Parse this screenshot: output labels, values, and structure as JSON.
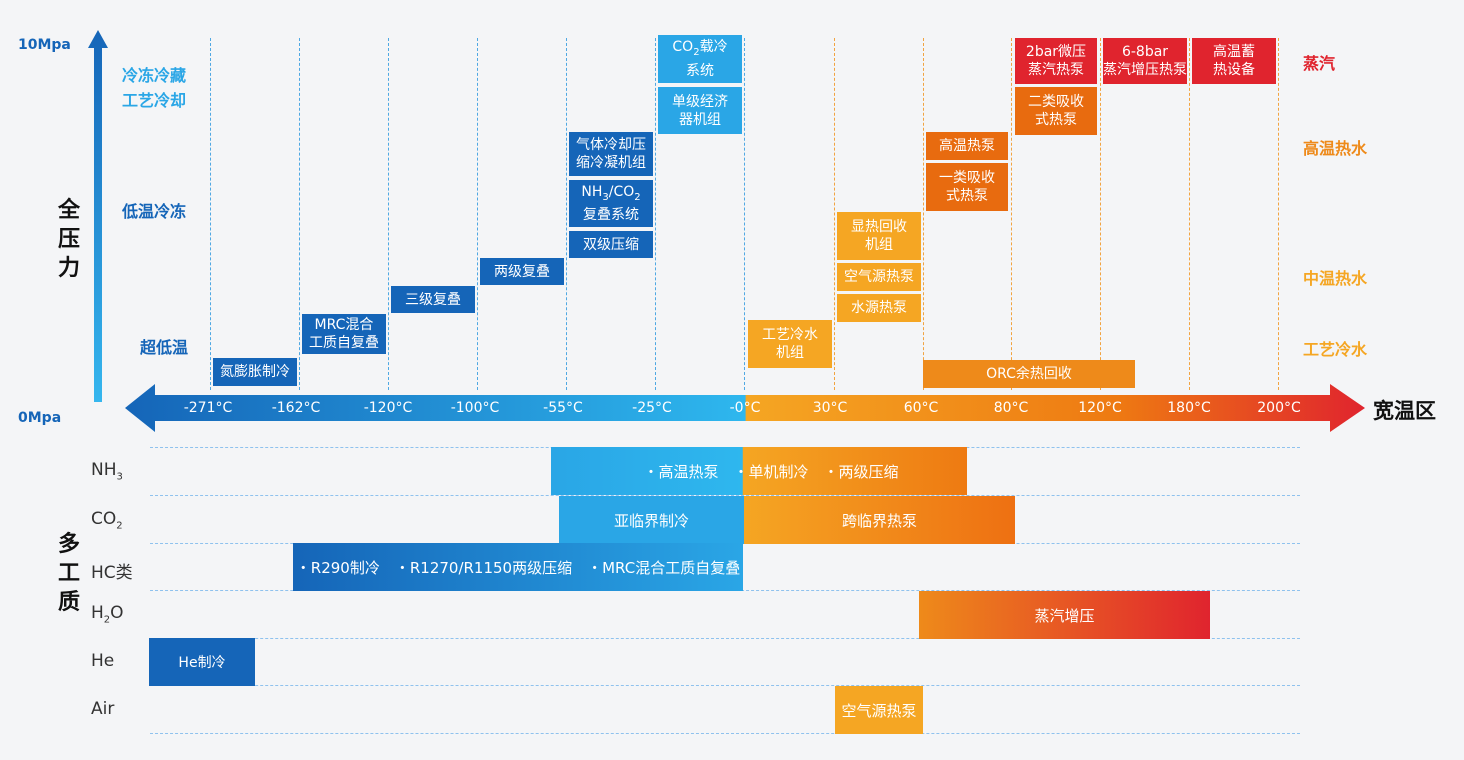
{
  "axis": {
    "pressure_top": "10Mpa",
    "pressure_bottom": "0Mpa",
    "pressure_title": [
      "全",
      "压",
      "力"
    ],
    "temp_title": "宽温区",
    "fluid_title": [
      "多",
      "工",
      "质"
    ],
    "ticks": [
      "-271°C",
      "-162°C",
      "-120°C",
      "-100°C",
      "-55°C",
      "-25°C",
      "-0°C",
      "30°C",
      "60°C",
      "80°C",
      "120°C",
      "180°C",
      "200°C"
    ]
  },
  "left_labels": [
    "冷冻冷藏",
    "工艺冷却",
    "低温冷冻",
    "超低温"
  ],
  "right_labels": [
    "蒸汽",
    "高温热水",
    "中温热水",
    "工艺冷水"
  ],
  "colors": {
    "blue_dark": "#1565b8",
    "blue_mid": "#1c8fd8",
    "blue_light": "#2aa6e6",
    "orange": "#ee8a1a",
    "red": "#e0242e"
  },
  "boxes": {
    "nitrogen": "氮膨胀制冷",
    "mrc1": "MRC混合",
    "mrc2": "工质自复叠",
    "three_stage": "三级复叠",
    "two_stage": "两级复叠",
    "gas_cool1": "气体冷却压",
    "gas_cool2": "缩冷凝机组",
    "nh3co2_a": "NH",
    "nh3co2_sub1": "3",
    "nh3co2_b": "/CO",
    "nh3co2_sub2": "2",
    "nh3co2_2": "复叠系统",
    "dual_comp": "双级压缩",
    "co2_a": "CO",
    "co2_sub": "2",
    "co2_b": "载冷",
    "co2_2": "系统",
    "econ1": "单级经济",
    "econ2": "器机组",
    "process_water1": "工艺冷水",
    "process_water2": "机组",
    "sensible1": "显热回收",
    "sensible2": "机组",
    "air_hp": "空气源热泵",
    "water_hp": "水源热泵",
    "high_hp": "高温热泵",
    "abs1_1": "一类吸收",
    "abs1_2": "式热泵",
    "abs2_1": "二类吸收",
    "abs2_2": "式热泵",
    "bar2_1": "2bar微压",
    "bar2_2": "蒸汽热泵",
    "bar68_1": "6-8bar",
    "bar68_2": "蒸汽增压热泵",
    "storage1": "高温蓄",
    "storage2": "热设备",
    "orc": "ORC余热回收"
  },
  "fluids": [
    {
      "name_main": "NH",
      "name_sub": "3",
      "items": "・高温热泵　・单机制冷　・两级压缩"
    },
    {
      "name_main": "CO",
      "name_sub": "2",
      "items_left": "亚临界制冷",
      "items_right": "跨临界热泵"
    },
    {
      "name_main": "HC类",
      "name_sub": "",
      "items": "・R290制冷　・R1270/R1150两级压缩　・MRC混合工质自复叠"
    },
    {
      "name_main": "H",
      "name_sub": "2",
      "name_tail": "O",
      "items": "蒸汽增压"
    },
    {
      "name_main": "He",
      "name_sub": "",
      "items": "He制冷"
    },
    {
      "name_main": "Air",
      "name_sub": "",
      "items": "空气源热泵"
    }
  ]
}
